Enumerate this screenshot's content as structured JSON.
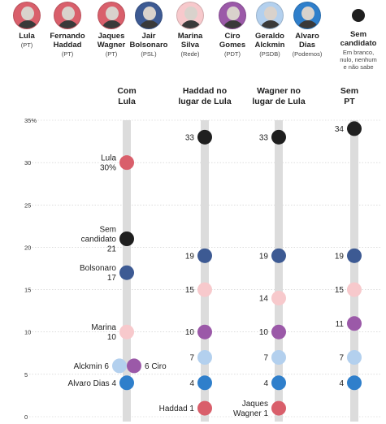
{
  "candidates": [
    {
      "name": "Lula",
      "party": "(PT)",
      "color": "#d95f6b"
    },
    {
      "name": "Fernando\nHaddad",
      "party": "(PT)",
      "color": "#d95f6b"
    },
    {
      "name": "Jaques\nWagner",
      "party": "(PT)",
      "color": "#d95f6b"
    },
    {
      "name": "Jair\nBolsonaro",
      "party": "(PSL)",
      "color": "#3d5a93"
    },
    {
      "name": "Marina\nSilva",
      "party": "(Rede)",
      "color": "#f7c9cc"
    },
    {
      "name": "Ciro\nGomes",
      "party": "(PDT)",
      "color": "#9b59a8"
    },
    {
      "name": "Geraldo\nAlckmin",
      "party": "(PSDB)",
      "color": "#b3d0ee"
    },
    {
      "name": "Alvaro\nDias",
      "party": "(Podemos)",
      "color": "#2f7fcb"
    },
    {
      "name": "Sem\ncandidato",
      "party": "Em branco,\nnulo, nenhum\ne não sabe",
      "color": "#1f1f1f"
    }
  ],
  "chart_data": {
    "type": "scatter",
    "categories": [
      "Com\nLula",
      "Haddad no\nlugar de Lula",
      "Wagner no\nlugar de Lula",
      "Sem\nPT"
    ],
    "ylim": [
      0,
      35
    ],
    "yticks": [
      "0",
      "5",
      "10",
      "15",
      "20",
      "25",
      "30",
      "35%"
    ],
    "colors": {
      "pt": "#d95f6b",
      "bolsonaro": "#3d5a93",
      "marina": "#f7c9cc",
      "ciro": "#9b59a8",
      "alckmin": "#b3d0ee",
      "alvaro": "#2f7fcb",
      "sem": "#1f1f1f"
    },
    "points": [
      {
        "col": 0,
        "key": "pt",
        "value": 30,
        "label": "Lula\n30%",
        "side": "left"
      },
      {
        "col": 0,
        "key": "sem",
        "value": 21,
        "label": "Sem\ncandidato\n21",
        "side": "left"
      },
      {
        "col": 0,
        "key": "bolsonaro",
        "value": 17,
        "label": "Bolsonaro\n17",
        "side": "left"
      },
      {
        "col": 0,
        "key": "marina",
        "value": 10,
        "label": "Marina\n10",
        "side": "left"
      },
      {
        "col": 0,
        "key": "alckmin",
        "value": 6,
        "label": "Alckmin 6",
        "side": "left",
        "offset": -9
      },
      {
        "col": 0,
        "key": "ciro",
        "value": 6,
        "label": "6 Ciro",
        "side": "right",
        "offset": 9
      },
      {
        "col": 0,
        "key": "alvaro",
        "value": 4,
        "label": "Alvaro Dias 4",
        "side": "left"
      },
      {
        "col": 1,
        "key": "sem",
        "value": 33,
        "label": "33",
        "side": "left"
      },
      {
        "col": 1,
        "key": "bolsonaro",
        "value": 19,
        "label": "19",
        "side": "left"
      },
      {
        "col": 1,
        "key": "marina",
        "value": 15,
        "label": "15",
        "side": "left"
      },
      {
        "col": 1,
        "key": "ciro",
        "value": 10,
        "label": "10",
        "side": "left"
      },
      {
        "col": 1,
        "key": "alckmin",
        "value": 7,
        "label": "7",
        "side": "left"
      },
      {
        "col": 1,
        "key": "alvaro",
        "value": 4,
        "label": "4",
        "side": "left"
      },
      {
        "col": 1,
        "key": "pt",
        "value": 1,
        "label": "Haddad 1",
        "side": "left"
      },
      {
        "col": 2,
        "key": "sem",
        "value": 33,
        "label": "33",
        "side": "left"
      },
      {
        "col": 2,
        "key": "bolsonaro",
        "value": 19,
        "label": "19",
        "side": "left"
      },
      {
        "col": 2,
        "key": "marina",
        "value": 14,
        "label": "14",
        "side": "left"
      },
      {
        "col": 2,
        "key": "ciro",
        "value": 10,
        "label": "10",
        "side": "left"
      },
      {
        "col": 2,
        "key": "alckmin",
        "value": 7,
        "label": "7",
        "side": "left"
      },
      {
        "col": 2,
        "key": "alvaro",
        "value": 4,
        "label": "4",
        "side": "left"
      },
      {
        "col": 2,
        "key": "pt",
        "value": 1,
        "label": "Jaques\nWagner 1",
        "side": "left"
      },
      {
        "col": 3,
        "key": "sem",
        "value": 34,
        "label": "34",
        "side": "left"
      },
      {
        "col": 3,
        "key": "bolsonaro",
        "value": 19,
        "label": "19",
        "side": "left"
      },
      {
        "col": 3,
        "key": "marina",
        "value": 15,
        "label": "15",
        "side": "left"
      },
      {
        "col": 3,
        "key": "ciro",
        "value": 11,
        "label": "11",
        "side": "left"
      },
      {
        "col": 3,
        "key": "alckmin",
        "value": 7,
        "label": "7",
        "side": "left"
      },
      {
        "col": 3,
        "key": "alvaro",
        "value": 4,
        "label": "4",
        "side": "left"
      }
    ]
  }
}
